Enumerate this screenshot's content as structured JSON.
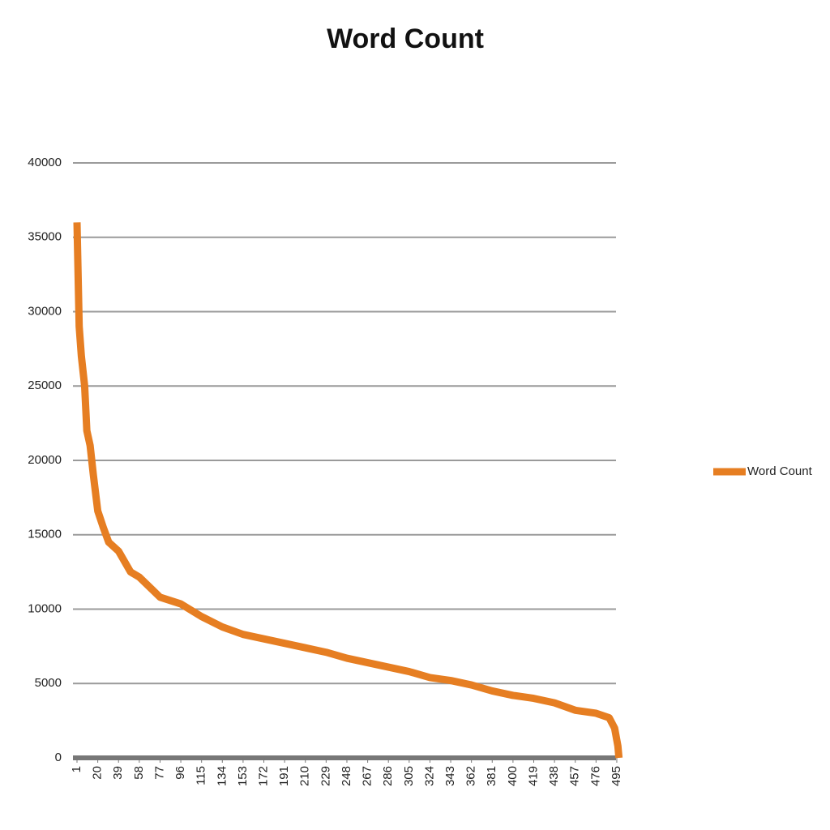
{
  "chart_data": {
    "type": "line",
    "title": "Word Count",
    "x": [
      1,
      3,
      5,
      8,
      10,
      13,
      16,
      20,
      25,
      30,
      39,
      50,
      58,
      70,
      77,
      96,
      115,
      134,
      153,
      172,
      191,
      210,
      229,
      248,
      267,
      286,
      305,
      324,
      343,
      362,
      381,
      400,
      419,
      438,
      457,
      476,
      488,
      493,
      496,
      497
    ],
    "series": [
      {
        "name": "Word Count",
        "color": "#e67e22",
        "values": [
          36000,
          29000,
          27000,
          25000,
          22000,
          21000,
          19000,
          16600,
          15500,
          14500,
          13900,
          12500,
          12150,
          11300,
          10800,
          10350,
          9500,
          8800,
          8300,
          8000,
          7700,
          7400,
          7100,
          6700,
          6400,
          6100,
          5800,
          5400,
          5200,
          4900,
          4500,
          4200,
          4000,
          3700,
          3200,
          3000,
          2700,
          2000,
          800,
          0
        ]
      }
    ],
    "xlim": [
      1,
      498
    ],
    "xticks": [
      1,
      20,
      39,
      58,
      77,
      96,
      115,
      134,
      153,
      172,
      191,
      210,
      229,
      248,
      267,
      286,
      305,
      324,
      343,
      362,
      381,
      400,
      419,
      438,
      457,
      476,
      495
    ],
    "ylim": [
      0,
      40000
    ],
    "yticks": [
      0,
      5000,
      10000,
      15000,
      20000,
      25000,
      30000,
      35000,
      40000
    ],
    "grid": true,
    "legend": "right"
  }
}
